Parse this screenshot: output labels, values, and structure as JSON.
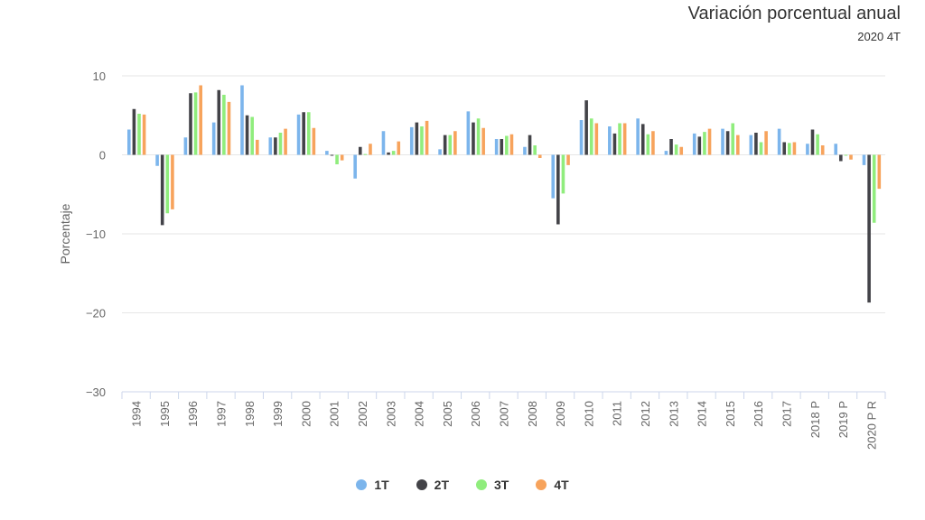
{
  "chart_data": {
    "type": "bar",
    "title": "Variación porcentual anual",
    "subtitle": "2020 4T",
    "xlabel": "",
    "ylabel": "Porcentaje",
    "ylim": [
      -30,
      10
    ],
    "yticks": [
      10,
      0,
      -10,
      -20,
      -30
    ],
    "ytick_labels": [
      "10",
      "0",
      "−10",
      "−20",
      "−30"
    ],
    "grid": true,
    "legend_position": "bottom",
    "categories": [
      "1994",
      "1995",
      "1996",
      "1997",
      "1998",
      "1999",
      "2000",
      "2001",
      "2002",
      "2003",
      "2004",
      "2005",
      "2006",
      "2007",
      "2008",
      "2009",
      "2010",
      "2011",
      "2012",
      "2013",
      "2014",
      "2015",
      "2016",
      "2017",
      "2018 P",
      "2019 P",
      "2020 P R"
    ],
    "series": [
      {
        "name": "1T",
        "color": "#7cb5ec",
        "values": [
          3.2,
          -1.4,
          2.2,
          4.1,
          8.8,
          2.2,
          5.1,
          0.5,
          -3.0,
          3.0,
          3.5,
          0.7,
          5.5,
          2.0,
          1.0,
          -5.5,
          4.4,
          3.6,
          4.6,
          0.5,
          2.7,
          3.3,
          2.5,
          3.3,
          1.4,
          1.4,
          -1.3
        ]
      },
      {
        "name": "2T",
        "color": "#434348",
        "values": [
          5.8,
          -8.9,
          7.8,
          8.2,
          5.0,
          2.2,
          5.4,
          -0.1,
          1.0,
          0.3,
          4.1,
          2.5,
          4.1,
          2.0,
          2.5,
          -8.8,
          6.9,
          2.7,
          3.9,
          2.0,
          2.3,
          3.0,
          2.8,
          1.6,
          3.2,
          -0.8,
          -18.7
        ]
      },
      {
        "name": "3T",
        "color": "#90ed7d",
        "values": [
          5.2,
          -7.4,
          7.9,
          7.6,
          4.8,
          2.8,
          5.4,
          -1.2,
          0.1,
          0.5,
          3.6,
          2.5,
          4.6,
          2.4,
          1.2,
          -4.9,
          4.6,
          4.0,
          2.6,
          1.3,
          2.9,
          4.0,
          1.6,
          1.5,
          2.6,
          -0.1,
          -8.6
        ]
      },
      {
        "name": "4T",
        "color": "#f7a35c",
        "values": [
          5.1,
          -6.9,
          8.8,
          6.7,
          1.9,
          3.3,
          3.4,
          -0.7,
          1.4,
          1.7,
          4.3,
          3.0,
          3.4,
          2.6,
          -0.4,
          -1.3,
          4.0,
          4.0,
          3.0,
          1.0,
          3.3,
          2.5,
          3.0,
          1.6,
          1.2,
          -0.6,
          -4.3
        ]
      }
    ]
  }
}
